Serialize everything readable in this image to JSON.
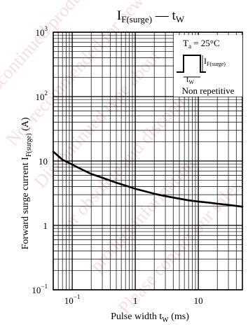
{
  "page": {
    "watermark_lines": [
      "Discontinued product information",
      "Not recommended for new designs",
      "Discontinued type about",
      "or obsolete and discontinued",
      "product information",
      "Please contact our sales"
    ]
  },
  "chart_data": {
    "type": "line",
    "title": {
      "main": "I",
      "main_sub": "F(surge)",
      "dash": " — ",
      "x": "t",
      "x_sub": "W"
    },
    "xlabel": {
      "text": "Pulse width  t",
      "sub": "W",
      "unit": "  (ms)"
    },
    "ylabel": {
      "text": "Forward surge current  I",
      "sub": "F(surge)",
      "unit": "  (A)"
    },
    "xscale": "log",
    "yscale": "log",
    "xlim": [
      0.05,
      50
    ],
    "ylim": [
      0.1,
      1000
    ],
    "x_ticks": [
      {
        "value": 0.1,
        "base": "10",
        "exp": "−1"
      },
      {
        "value": 1,
        "base": "1",
        "exp": ""
      },
      {
        "value": 10,
        "base": "10",
        "exp": ""
      }
    ],
    "y_ticks": [
      {
        "value": 1000,
        "base": "10",
        "exp": "3"
      },
      {
        "value": 100,
        "base": "10",
        "exp": "2"
      },
      {
        "value": 10,
        "base": "10",
        "exp": ""
      },
      {
        "value": 1,
        "base": "1",
        "exp": ""
      },
      {
        "value": 0.1,
        "base": "10",
        "exp": "−1"
      }
    ],
    "grid": true,
    "series": [
      {
        "x": [
          0.05,
          0.07,
          0.1,
          0.15,
          0.2,
          0.3,
          0.5,
          0.7,
          1,
          1.5,
          2,
          3,
          5,
          7,
          10,
          15,
          20,
          30,
          50
        ],
        "y": [
          14,
          10.5,
          8.8,
          7.2,
          6.3,
          5.5,
          4.6,
          4.15,
          3.7,
          3.35,
          3.1,
          2.85,
          2.6,
          2.45,
          2.35,
          2.25,
          2.17,
          2.08,
          1.95
        ]
      }
    ],
    "annotation": {
      "ta_label": "T",
      "ta_sub": "a",
      "ta_value": " = 25°C",
      "pulse_current": "I",
      "pulse_current_sub": "F(surge)",
      "pulse_width": "t",
      "pulse_width_sub": "W",
      "note": "Non repetitive"
    }
  }
}
